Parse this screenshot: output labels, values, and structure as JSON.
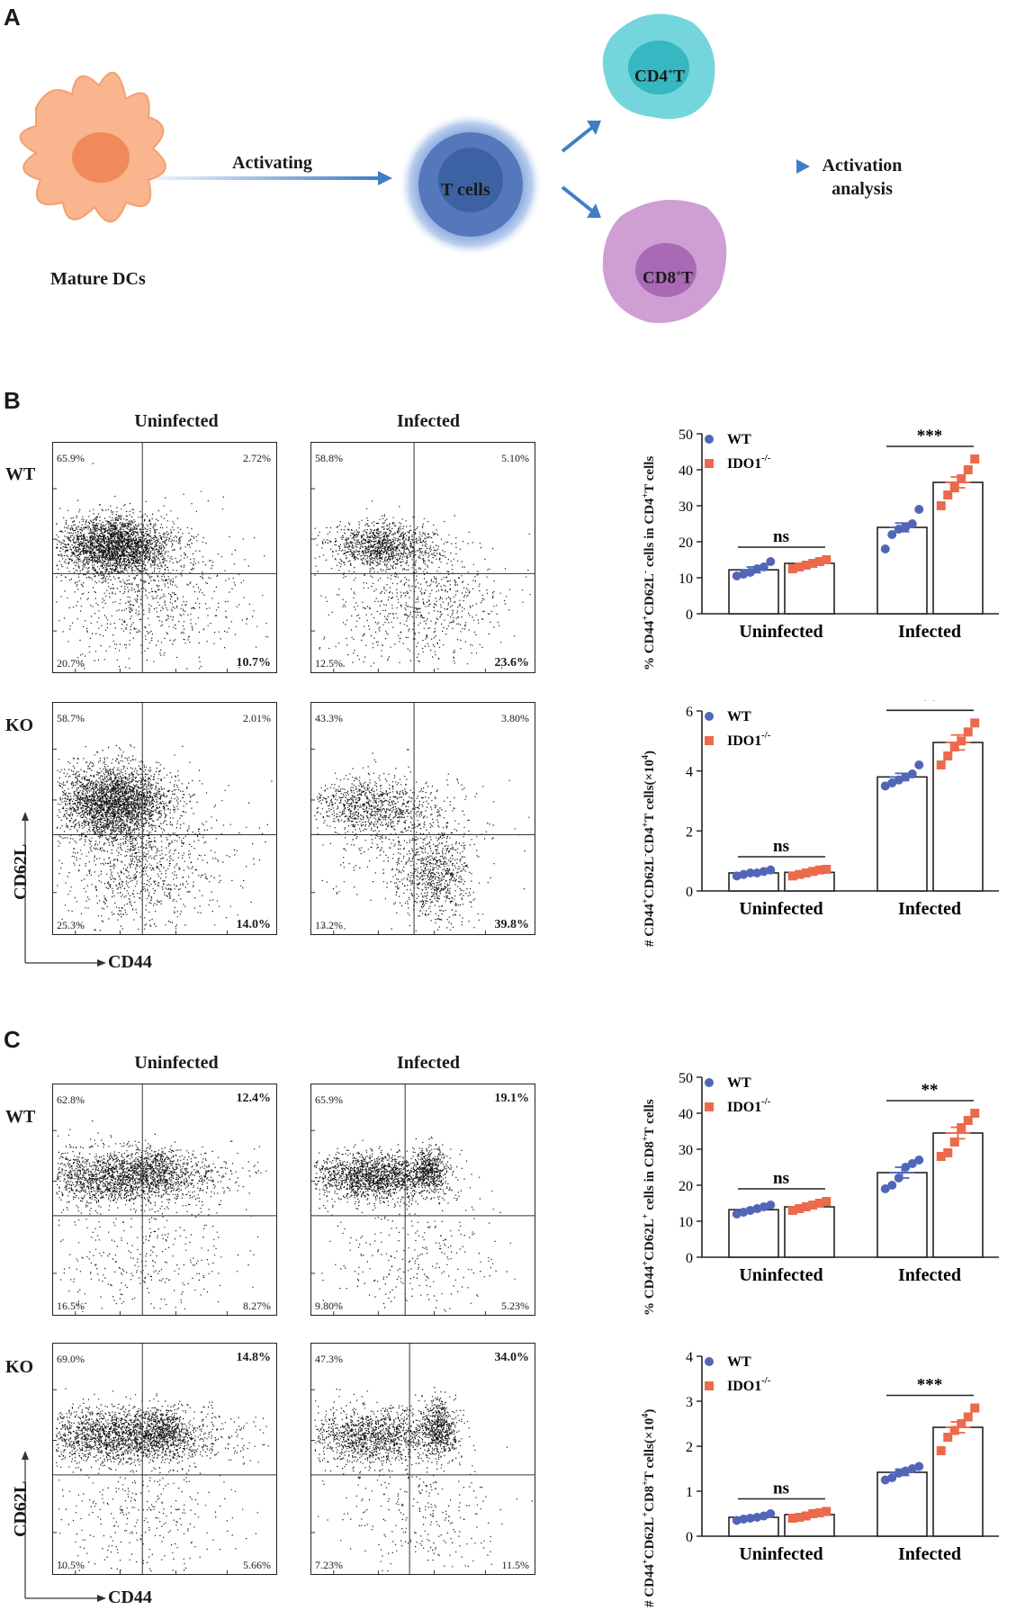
{
  "panelA": {
    "letter": "A",
    "dc_label": "Mature DCs",
    "arrow_label": "Activating",
    "tcell_label": "T cells",
    "cd4_label": "CD4",
    "cd4_sup": "+",
    "cd4_suffix": "T",
    "cd8_label": "CD8",
    "cd8_sup": "+",
    "cd8_suffix": "T",
    "analysis_line1": "Activation",
    "analysis_line2": "analysis",
    "colors": {
      "dc": "#f7a77a",
      "tcell": "#5a83c4",
      "cd4": "#5fcfd6",
      "cd8": "#c58cc9",
      "arrow": "#3f7fc6"
    }
  },
  "panelB": {
    "letter": "B",
    "col_uninfected": "Uninfected",
    "col_infected": "Infected",
    "row_wt": "WT",
    "row_ko": "KO",
    "y_axis": "CD62L",
    "x_axis": "CD44",
    "plots": [
      {
        "tl": "65.9%",
        "tr": "2.72%",
        "bl": "20.7%",
        "br": "10.7%"
      },
      {
        "tl": "58.8%",
        "tr": "5.10%",
        "bl": "12.5%",
        "br": "23.6%"
      },
      {
        "tl": "58.7%",
        "tr": "2.01%",
        "bl": "25.3%",
        "br": "14.0%"
      },
      {
        "tl": "43.3%",
        "tr": "3.80%",
        "bl": "13.2%",
        "br": "39.8%"
      }
    ]
  },
  "panelC": {
    "letter": "C",
    "col_uninfected": "Uninfected",
    "col_infected": "Infected",
    "row_wt": "WT",
    "row_ko": "KO",
    "y_axis": "CD62L",
    "x_axis": "CD44",
    "plots": [
      {
        "tl": "62.8%",
        "tr": "12.4%",
        "bl": "16.5%",
        "br": "8.27%"
      },
      {
        "tl": "65.9%",
        "tr": "19.1%",
        "bl": "9.80%",
        "br": "5.23%"
      },
      {
        "tl": "69.0%",
        "tr": "14.8%",
        "bl": "10.5%",
        "br": "5.66%"
      },
      {
        "tl": "47.3%",
        "tr": "34.0%",
        "bl": "7.23%",
        "br": "11.5%"
      }
    ]
  },
  "chart_data": [
    {
      "type": "bar",
      "ylabel": "% CD44+CD62L- cells in CD4+T cells",
      "categories": [
        "Uninfected",
        "Infected"
      ],
      "ylim": [
        0,
        50
      ],
      "yticks": [
        0,
        10,
        20,
        30,
        40,
        50
      ],
      "legend": [
        "WT",
        "IDO1-/-"
      ],
      "series": [
        {
          "name": "WT",
          "values": [
            12.2,
            24.0
          ],
          "err": [
            0.8,
            1.2
          ],
          "points": [
            [
              10.5,
              11,
              11.5,
              12.5,
              13,
              14.5
            ],
            [
              18,
              22,
              23.5,
              24,
              25,
              29
            ]
          ]
        },
        {
          "name": "IDO1-/-",
          "values": [
            14.0,
            36.5
          ],
          "err": [
            0.5,
            1.5
          ],
          "points": [
            [
              12.5,
              13,
              13.5,
              14,
              14.5,
              15
            ],
            [
              30,
              33,
              35,
              37.5,
              40,
              43
            ]
          ]
        }
      ],
      "significance": [
        "ns",
        "***"
      ]
    },
    {
      "type": "bar",
      "ylabel": "# CD44+CD62L-CD4+T cells(×10^4)",
      "categories": [
        "Uninfected",
        "Infected"
      ],
      "ylim": [
        0,
        6
      ],
      "yticks": [
        0,
        2,
        4,
        6
      ],
      "legend": [
        "WT",
        "IDO1-/-"
      ],
      "series": [
        {
          "name": "WT",
          "values": [
            0.6,
            3.8
          ],
          "err": [
            0.05,
            0.12
          ],
          "points": [
            [
              0.5,
              0.55,
              0.6,
              0.6,
              0.65,
              0.7
            ],
            [
              3.5,
              3.6,
              3.7,
              3.8,
              3.9,
              4.2
            ]
          ]
        },
        {
          "name": "IDO1-/-",
          "values": [
            0.62,
            4.95
          ],
          "err": [
            0.05,
            0.25
          ],
          "points": [
            [
              0.5,
              0.55,
              0.6,
              0.65,
              0.7,
              0.72
            ],
            [
              4.2,
              4.5,
              4.8,
              5.0,
              5.3,
              5.6
            ]
          ]
        }
      ],
      "significance": [
        "ns",
        "**"
      ]
    },
    {
      "type": "bar",
      "ylabel": "% CD44+CD62L+ cells in CD8+T cells",
      "categories": [
        "Uninfected",
        "Infected"
      ],
      "ylim": [
        0,
        50
      ],
      "yticks": [
        0,
        10,
        20,
        30,
        40,
        50
      ],
      "legend": [
        "WT",
        "IDO1-/-"
      ],
      "series": [
        {
          "name": "WT",
          "values": [
            13.2,
            23.5
          ],
          "err": [
            0.5,
            1.5
          ],
          "points": [
            [
              12,
              12.5,
              13,
              13.5,
              14,
              14.5
            ],
            [
              19,
              20,
              22,
              25,
              26,
              27
            ]
          ]
        },
        {
          "name": "IDO1-/-",
          "values": [
            14.0,
            34.5
          ],
          "err": [
            0.5,
            1.6
          ],
          "points": [
            [
              13,
              13.5,
              14,
              14.5,
              15,
              15.5
            ],
            [
              28,
              29,
              32,
              36,
              38,
              40
            ]
          ]
        }
      ],
      "significance": [
        "ns",
        "**"
      ]
    },
    {
      "type": "bar",
      "ylabel": "# CD44+CD62L+CD8+T cells(×10^4)",
      "categories": [
        "Uninfected",
        "Infected"
      ],
      "ylim": [
        0,
        4
      ],
      "yticks": [
        0,
        1,
        2,
        3,
        4
      ],
      "legend": [
        "WT",
        "IDO1-/-"
      ],
      "series": [
        {
          "name": "WT",
          "values": [
            0.42,
            1.42
          ],
          "err": [
            0.03,
            0.07
          ],
          "points": [
            [
              0.35,
              0.38,
              0.4,
              0.42,
              0.45,
              0.5
            ],
            [
              1.25,
              1.3,
              1.4,
              1.45,
              1.5,
              1.55
            ]
          ]
        },
        {
          "name": "IDO1-/-",
          "values": [
            0.48,
            2.42
          ],
          "err": [
            0.03,
            0.12
          ],
          "points": [
            [
              0.4,
              0.42,
              0.45,
              0.5,
              0.52,
              0.55
            ],
            [
              1.9,
              2.2,
              2.35,
              2.5,
              2.65,
              2.85
            ]
          ]
        }
      ],
      "significance": [
        "ns",
        "***"
      ]
    }
  ],
  "chart_axis_text": {
    "b1": {
      "pre": "% CD44",
      "s1": "+",
      "mid": "CD62L",
      "s2": "-",
      "post": " cells in CD4",
      "s3": "+",
      "end": "T cells"
    },
    "b2": {
      "pre": "# CD44",
      "s1": "+",
      "mid": "CD62L",
      "s2": "-",
      "mid2": "CD4",
      "s3": "+",
      "post": "T cells(×10",
      "s4": "4",
      "end": ")"
    },
    "c1": {
      "pre": "% CD44",
      "s1": "+",
      "mid": "CD62L",
      "s2": "+",
      "post": " cells in CD8",
      "s3": "+",
      "end": "T cells"
    },
    "c2": {
      "pre": "# CD44",
      "s1": "+",
      "mid": "CD62L",
      "s2": "+",
      "mid2": "CD8",
      "s3": "+",
      "post": "T cells(×10",
      "s4": "4",
      "end": ")"
    },
    "legend_wt": "WT",
    "legend_ko": "IDO1",
    "legend_ko_sup": "-/-"
  },
  "colors": {
    "wt": "#5266b8",
    "ko": "#ec6a4c"
  }
}
